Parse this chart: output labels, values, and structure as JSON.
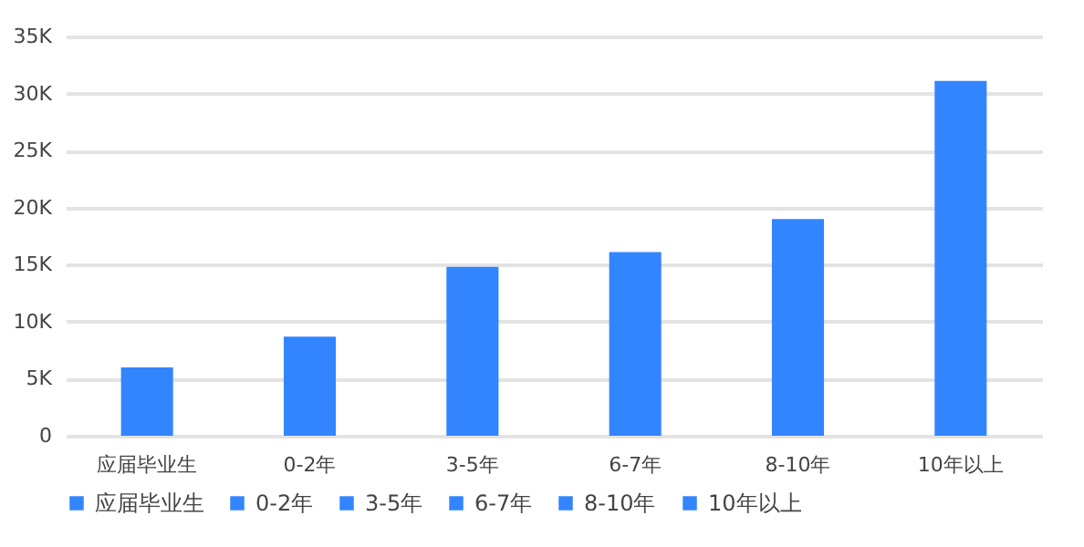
{
  "chart_data": {
    "type": "bar",
    "categories": [
      "应届毕业生",
      "0-2年",
      "3-5年",
      "6-7年",
      "8-10年",
      "10年以上"
    ],
    "series": [
      {
        "name": "应届毕业生",
        "color": "#3385ff",
        "values": [
          6000,
          null,
          null,
          null,
          null,
          null
        ]
      },
      {
        "name": "0-2年",
        "color": "#3385ff",
        "values": [
          null,
          8700,
          null,
          null,
          null,
          null
        ]
      },
      {
        "name": "3-5年",
        "color": "#3385ff",
        "values": [
          null,
          null,
          14800,
          null,
          null,
          null
        ]
      },
      {
        "name": "6-7年",
        "color": "#3385ff",
        "values": [
          null,
          null,
          null,
          16100,
          null,
          null
        ]
      },
      {
        "name": "8-10年",
        "color": "#3385ff",
        "values": [
          null,
          null,
          null,
          null,
          19000,
          null
        ]
      },
      {
        "name": "10年以上",
        "color": "#3385ff",
        "values": [
          null,
          null,
          null,
          null,
          null,
          31100
        ]
      }
    ],
    "ylim": [
      0,
      35000
    ],
    "yticks": [
      0,
      {
        "value": 5000,
        "label": "5K"
      },
      {
        "value": 10000,
        "label": "10K"
      },
      {
        "value": 15000,
        "label": "15K"
      },
      {
        "value": 20000,
        "label": "20K"
      },
      {
        "value": 25000,
        "label": "25K"
      },
      {
        "value": 30000,
        "label": "30K"
      },
      {
        "value": 35000,
        "label": "35K"
      }
    ],
    "grid": "y",
    "legend": "bottom"
  }
}
